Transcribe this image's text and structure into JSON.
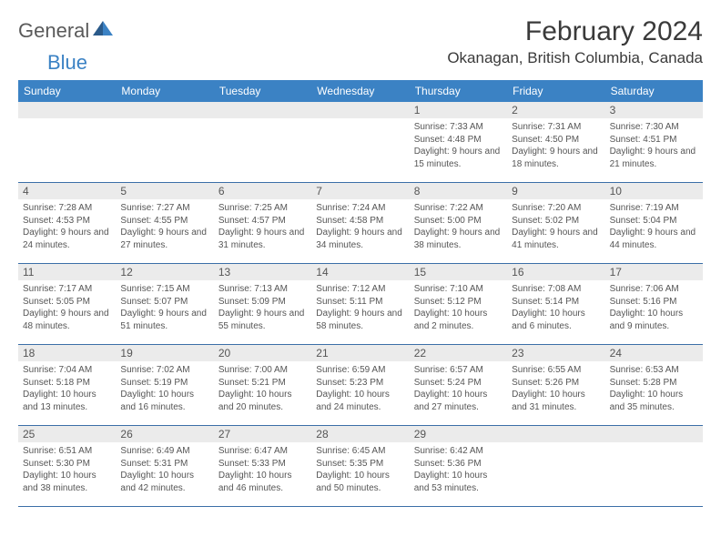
{
  "logo": {
    "text1": "General",
    "text2": "Blue"
  },
  "title": "February 2024",
  "location": "Okanagan, British Columbia, Canada",
  "header_bg": "#3b82c4",
  "daynum_bg": "#ebebeb",
  "border_color": "#3b6fa8",
  "day_headers": [
    "Sunday",
    "Monday",
    "Tuesday",
    "Wednesday",
    "Thursday",
    "Friday",
    "Saturday"
  ],
  "first_weekday": 4,
  "days": [
    {
      "n": "1",
      "sunrise": "7:33 AM",
      "sunset": "4:48 PM",
      "dl": "9 hours and 15 minutes."
    },
    {
      "n": "2",
      "sunrise": "7:31 AM",
      "sunset": "4:50 PM",
      "dl": "9 hours and 18 minutes."
    },
    {
      "n": "3",
      "sunrise": "7:30 AM",
      "sunset": "4:51 PM",
      "dl": "9 hours and 21 minutes."
    },
    {
      "n": "4",
      "sunrise": "7:28 AM",
      "sunset": "4:53 PM",
      "dl": "9 hours and 24 minutes."
    },
    {
      "n": "5",
      "sunrise": "7:27 AM",
      "sunset": "4:55 PM",
      "dl": "9 hours and 27 minutes."
    },
    {
      "n": "6",
      "sunrise": "7:25 AM",
      "sunset": "4:57 PM",
      "dl": "9 hours and 31 minutes."
    },
    {
      "n": "7",
      "sunrise": "7:24 AM",
      "sunset": "4:58 PM",
      "dl": "9 hours and 34 minutes."
    },
    {
      "n": "8",
      "sunrise": "7:22 AM",
      "sunset": "5:00 PM",
      "dl": "9 hours and 38 minutes."
    },
    {
      "n": "9",
      "sunrise": "7:20 AM",
      "sunset": "5:02 PM",
      "dl": "9 hours and 41 minutes."
    },
    {
      "n": "10",
      "sunrise": "7:19 AM",
      "sunset": "5:04 PM",
      "dl": "9 hours and 44 minutes."
    },
    {
      "n": "11",
      "sunrise": "7:17 AM",
      "sunset": "5:05 PM",
      "dl": "9 hours and 48 minutes."
    },
    {
      "n": "12",
      "sunrise": "7:15 AM",
      "sunset": "5:07 PM",
      "dl": "9 hours and 51 minutes."
    },
    {
      "n": "13",
      "sunrise": "7:13 AM",
      "sunset": "5:09 PM",
      "dl": "9 hours and 55 minutes."
    },
    {
      "n": "14",
      "sunrise": "7:12 AM",
      "sunset": "5:11 PM",
      "dl": "9 hours and 58 minutes."
    },
    {
      "n": "15",
      "sunrise": "7:10 AM",
      "sunset": "5:12 PM",
      "dl": "10 hours and 2 minutes."
    },
    {
      "n": "16",
      "sunrise": "7:08 AM",
      "sunset": "5:14 PM",
      "dl": "10 hours and 6 minutes."
    },
    {
      "n": "17",
      "sunrise": "7:06 AM",
      "sunset": "5:16 PM",
      "dl": "10 hours and 9 minutes."
    },
    {
      "n": "18",
      "sunrise": "7:04 AM",
      "sunset": "5:18 PM",
      "dl": "10 hours and 13 minutes."
    },
    {
      "n": "19",
      "sunrise": "7:02 AM",
      "sunset": "5:19 PM",
      "dl": "10 hours and 16 minutes."
    },
    {
      "n": "20",
      "sunrise": "7:00 AM",
      "sunset": "5:21 PM",
      "dl": "10 hours and 20 minutes."
    },
    {
      "n": "21",
      "sunrise": "6:59 AM",
      "sunset": "5:23 PM",
      "dl": "10 hours and 24 minutes."
    },
    {
      "n": "22",
      "sunrise": "6:57 AM",
      "sunset": "5:24 PM",
      "dl": "10 hours and 27 minutes."
    },
    {
      "n": "23",
      "sunrise": "6:55 AM",
      "sunset": "5:26 PM",
      "dl": "10 hours and 31 minutes."
    },
    {
      "n": "24",
      "sunrise": "6:53 AM",
      "sunset": "5:28 PM",
      "dl": "10 hours and 35 minutes."
    },
    {
      "n": "25",
      "sunrise": "6:51 AM",
      "sunset": "5:30 PM",
      "dl": "10 hours and 38 minutes."
    },
    {
      "n": "26",
      "sunrise": "6:49 AM",
      "sunset": "5:31 PM",
      "dl": "10 hours and 42 minutes."
    },
    {
      "n": "27",
      "sunrise": "6:47 AM",
      "sunset": "5:33 PM",
      "dl": "10 hours and 46 minutes."
    },
    {
      "n": "28",
      "sunrise": "6:45 AM",
      "sunset": "5:35 PM",
      "dl": "10 hours and 50 minutes."
    },
    {
      "n": "29",
      "sunrise": "6:42 AM",
      "sunset": "5:36 PM",
      "dl": "10 hours and 53 minutes."
    }
  ],
  "labels": {
    "sunrise": "Sunrise:",
    "sunset": "Sunset:",
    "daylight": "Daylight:"
  }
}
